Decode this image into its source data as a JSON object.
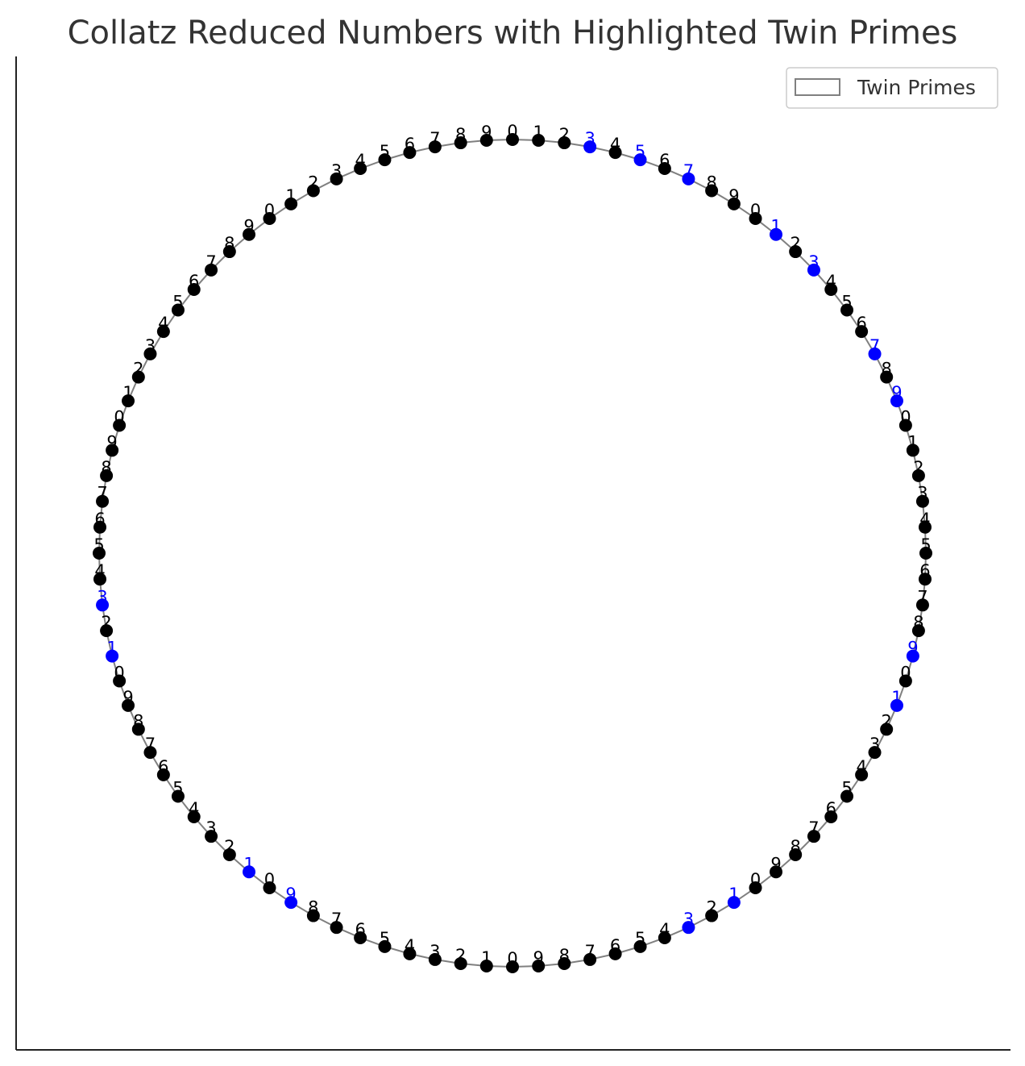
{
  "chart_data": {
    "type": "scatter",
    "title": "Collatz Reduced Numbers with Highlighted Twin Primes",
    "xlabel": "",
    "ylabel": "",
    "legend": {
      "placement": "top-right",
      "entries": [
        "Twin Primes"
      ]
    },
    "grid": false,
    "axes_ticks": false,
    "point_count": 100,
    "digit_labels": [
      "0",
      "1",
      "2",
      "3",
      "4",
      "5",
      "6",
      "7",
      "8",
      "9",
      "0",
      "1",
      "2",
      "3",
      "4",
      "5",
      "6",
      "7",
      "8",
      "9",
      "0",
      "1",
      "2",
      "3",
      "4",
      "5",
      "6",
      "7",
      "8",
      "9",
      "0",
      "1",
      "2",
      "3",
      "4",
      "5",
      "6",
      "7",
      "8",
      "9",
      "0",
      "1",
      "2",
      "3",
      "4",
      "5",
      "6",
      "7",
      "8",
      "9",
      "0",
      "1",
      "2",
      "3",
      "4",
      "5",
      "6",
      "7",
      "8",
      "9",
      "0",
      "1",
      "2",
      "3",
      "4",
      "5",
      "6",
      "7",
      "8",
      "9",
      "0",
      "1",
      "2",
      "3",
      "4",
      "5",
      "6",
      "7",
      "8",
      "9",
      "0",
      "1",
      "2",
      "3",
      "4",
      "5",
      "6",
      "7",
      "8",
      "9",
      "0",
      "1",
      "2",
      "3",
      "4",
      "5",
      "6",
      "7",
      "8",
      "9"
    ],
    "twin_prime_indices": [
      3,
      5,
      7,
      11,
      13,
      17,
      19,
      29,
      31,
      41,
      43,
      59,
      61,
      71,
      73
    ],
    "colors": {
      "normal": "#000000",
      "twin_prime": "#0000ff",
      "circle_line": "#808080",
      "axis": "#222222",
      "title": "#333333"
    }
  }
}
